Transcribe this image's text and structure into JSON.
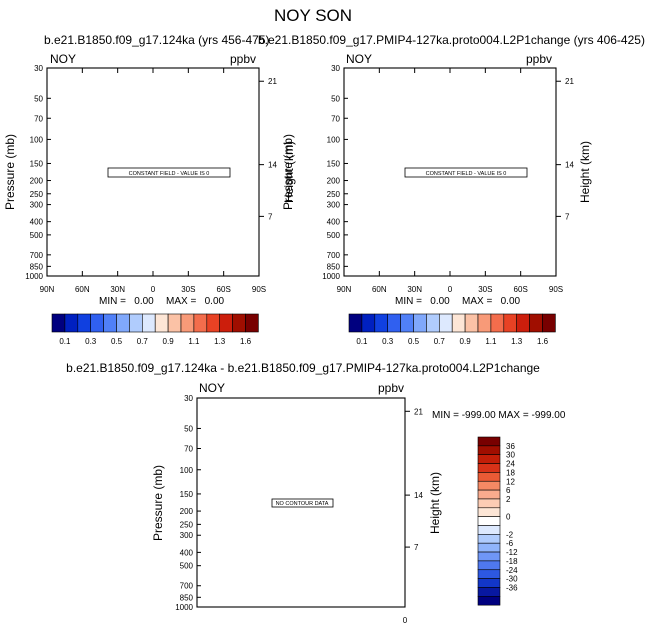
{
  "title": "NOY SON",
  "colors": {
    "top_colorbar": [
      "#00007f",
      "#0020c0",
      "#1040e0",
      "#3060f0",
      "#5080f8",
      "#80a8fb",
      "#b0ccfd",
      "#dde9fe",
      "#fde6d6",
      "#fbc2a6",
      "#f89a78",
      "#f36d4c",
      "#e84224",
      "#cc1e0c",
      "#a00e00",
      "#780000"
    ],
    "bottom_colorbar": [
      "#780000",
      "#a00e00",
      "#c21e08",
      "#d83218",
      "#ea5a35",
      "#f58964",
      "#f9ab8e",
      "#fcccb4",
      "#fde6d6",
      "#ffffff",
      "#dde9fe",
      "#b0ccfd",
      "#90b4fb",
      "#6f96f6",
      "#4f78ef",
      "#2d58e2",
      "#1236c8",
      "#0818a0",
      "#00007f"
    ]
  },
  "chart_data": [
    {
      "type": "contour",
      "title": "b.e21.B1850.f09_g17.124ka (yrs 456-475)",
      "left_label": "NOY",
      "right_label": "ppbv",
      "ylabel": "Pressure (mb)",
      "ylabel_right": "Height (km)",
      "x_ticks": [
        "90N",
        "60N",
        "30N",
        "0",
        "30S",
        "60S",
        "90S"
      ],
      "y_ticks": [
        "30",
        "50",
        "70",
        "100",
        "150",
        "200",
        "250",
        "300",
        "400",
        "500",
        "700",
        "850",
        "1000"
      ],
      "y_values": [
        30,
        50,
        70,
        100,
        150,
        200,
        250,
        300,
        400,
        500,
        700,
        850,
        1000
      ],
      "ylim": [
        30,
        1000
      ],
      "yscale": "log",
      "height_ticks": [
        "21",
        "14",
        "7"
      ],
      "height_pressures": [
        37.5,
        153,
        366
      ],
      "note": "CONSTANT FIELD - VALUE IS 0",
      "min_label": "MIN =   0.00",
      "max_label": "MAX =   0.00",
      "colorbar_labels": [
        "0.1",
        "0.3",
        "0.5",
        "0.7",
        "0.9",
        "1.1",
        "1.3",
        "1.6"
      ]
    },
    {
      "type": "contour",
      "title": "b.e21.B1850.f09_g17.PMIP4-127ka.proto004.L2P1change (yrs 406-425)",
      "left_label": "NOY",
      "right_label": "ppbv",
      "ylabel": "Pressure (mb)",
      "ylabel_right": "Height (km)",
      "x_ticks": [
        "90N",
        "60N",
        "30N",
        "0",
        "30S",
        "60S",
        "90S"
      ],
      "y_ticks": [
        "30",
        "50",
        "70",
        "100",
        "150",
        "200",
        "250",
        "300",
        "400",
        "500",
        "700",
        "850",
        "1000"
      ],
      "y_values": [
        30,
        50,
        70,
        100,
        150,
        200,
        250,
        300,
        400,
        500,
        700,
        850,
        1000
      ],
      "ylim": [
        30,
        1000
      ],
      "yscale": "log",
      "height_ticks": [
        "21",
        "14",
        "7"
      ],
      "height_pressures": [
        37.5,
        153,
        366
      ],
      "note": "CONSTANT FIELD - VALUE IS 0",
      "min_label": "MIN =   0.00",
      "max_label": "MAX =   0.00",
      "colorbar_labels": [
        "0.1",
        "0.3",
        "0.5",
        "0.7",
        "0.9",
        "1.1",
        "1.3",
        "1.6"
      ]
    },
    {
      "type": "contour",
      "title": "b.e21.B1850.f09_g17.124ka - b.e21.B1850.f09_g17.PMIP4-127ka.proto004.L2P1change",
      "left_label": "NOY",
      "right_label": "ppbv",
      "ylabel": "Pressure (mb)",
      "ylabel_right": "Height (km)",
      "x_ticks": [
        "0"
      ],
      "y_ticks": [
        "30",
        "50",
        "70",
        "100",
        "150",
        "200",
        "250",
        "300",
        "400",
        "500",
        "700",
        "850",
        "1000"
      ],
      "y_values": [
        30,
        50,
        70,
        100,
        150,
        200,
        250,
        300,
        400,
        500,
        700,
        850,
        1000
      ],
      "ylim": [
        30,
        1000
      ],
      "yscale": "log",
      "height_ticks": [
        "21",
        "14",
        "7"
      ],
      "height_pressures": [
        37.5,
        153,
        366
      ],
      "note": "NO CONTOUR DATA",
      "minmax_label": "MIN = -999.00  MAX = -999.00",
      "colorbar_labels": [
        "36",
        "30",
        "24",
        "18",
        "12",
        "6",
        "2",
        "0",
        "-2",
        "-6",
        "-12",
        "-18",
        "-24",
        "-30",
        "-36"
      ]
    }
  ]
}
